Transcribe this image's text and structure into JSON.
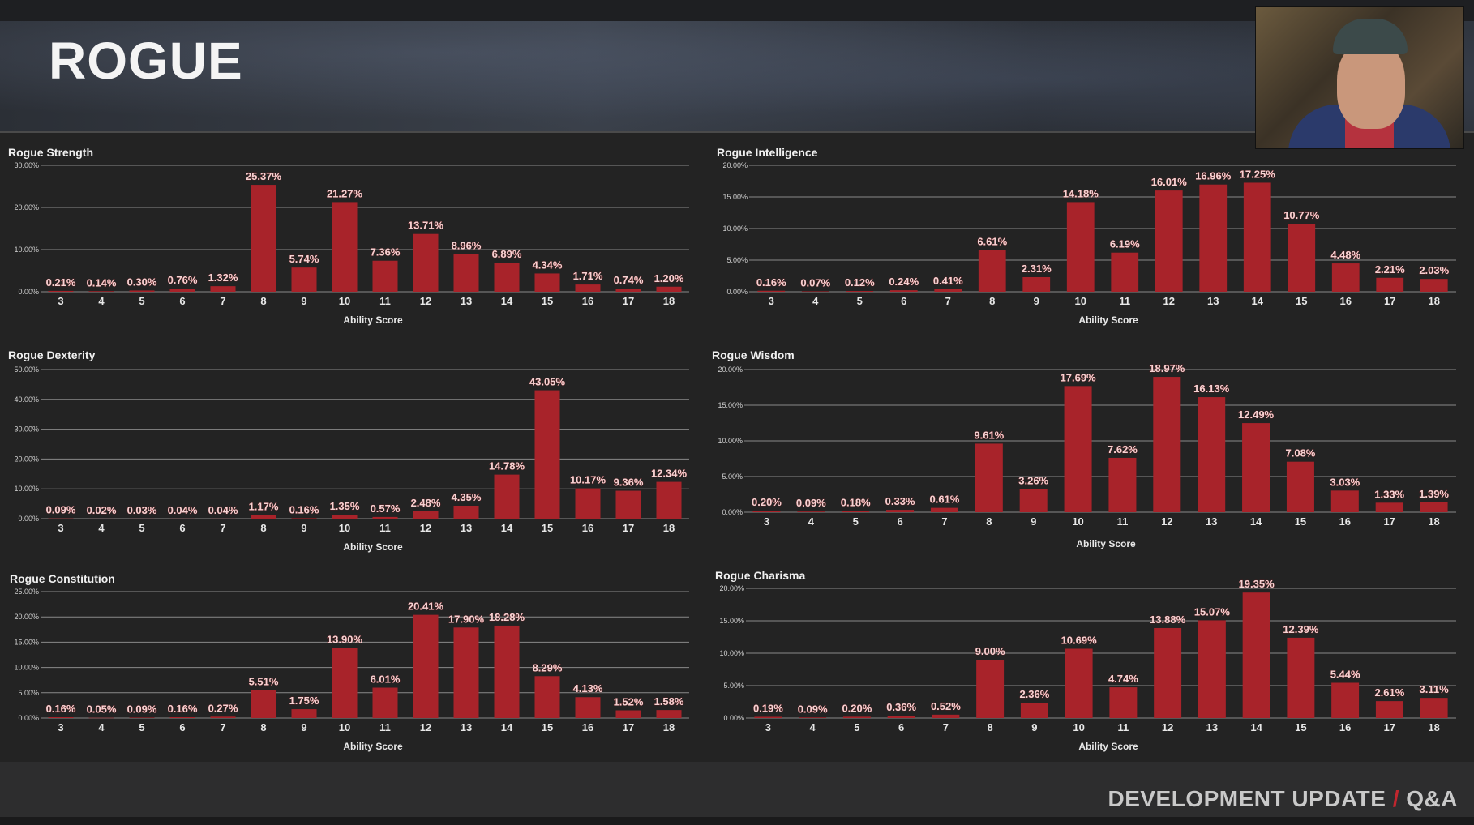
{
  "header": {
    "title": "ROGUE"
  },
  "footer": {
    "left": "DEVELOPMENT UPDATE",
    "separator": "/",
    "right": "Q&A"
  },
  "colors": {
    "bar": "#a8232a",
    "grid": "#8a8a8a",
    "background": "#232323",
    "accent": "#c0262e"
  },
  "chart_data": [
    {
      "type": "bar",
      "title": "Rogue Strength",
      "xlabel": "Ability Score",
      "ylabel": "",
      "categories": [
        "3",
        "4",
        "5",
        "6",
        "7",
        "8",
        "9",
        "10",
        "11",
        "12",
        "13",
        "14",
        "15",
        "16",
        "17",
        "18"
      ],
      "values": [
        0.21,
        0.14,
        0.3,
        0.76,
        1.32,
        25.37,
        5.74,
        21.27,
        7.36,
        13.71,
        8.96,
        6.89,
        4.34,
        1.71,
        0.74,
        1.2
      ],
      "labels": [
        "0.21%",
        "0.14%",
        "0.30%",
        "0.76%",
        "1.32%",
        "25.37%",
        "5.74%",
        "21.27%",
        "7.36%",
        "13.71%",
        "8.96%",
        "6.89%",
        "4.34%",
        "1.71%",
        "0.74%",
        "1.20%"
      ],
      "yticks": [
        "0.00%",
        "10.00%",
        "20.00%",
        "30.00%"
      ],
      "ymax": 30,
      "ystep": 10,
      "grid": true
    },
    {
      "type": "bar",
      "title": "Rogue Intelligence",
      "xlabel": "Ability Score",
      "ylabel": "",
      "categories": [
        "3",
        "4",
        "5",
        "6",
        "7",
        "8",
        "9",
        "10",
        "11",
        "12",
        "13",
        "14",
        "15",
        "16",
        "17",
        "18"
      ],
      "values": [
        0.16,
        0.07,
        0.12,
        0.24,
        0.41,
        6.61,
        2.31,
        14.18,
        6.19,
        16.01,
        16.96,
        17.25,
        10.77,
        4.48,
        2.21,
        2.03
      ],
      "labels": [
        "0.16%",
        "0.07%",
        "0.12%",
        "0.24%",
        "0.41%",
        "6.61%",
        "2.31%",
        "14.18%",
        "6.19%",
        "16.01%",
        "16.96%",
        "17.25%",
        "10.77%",
        "4.48%",
        "2.21%",
        "2.03%"
      ],
      "yticks": [
        "0.00%",
        "5.00%",
        "10.00%",
        "15.00%",
        "20.00%"
      ],
      "ymax": 20,
      "ystep": 5,
      "grid": true
    },
    {
      "type": "bar",
      "title": "Rogue Dexterity",
      "xlabel": "Ability Score",
      "ylabel": "",
      "categories": [
        "3",
        "4",
        "5",
        "6",
        "7",
        "8",
        "9",
        "10",
        "11",
        "12",
        "13",
        "14",
        "15",
        "16",
        "17",
        "18"
      ],
      "values": [
        0.09,
        0.02,
        0.03,
        0.04,
        0.04,
        1.17,
        0.16,
        1.35,
        0.57,
        2.48,
        4.35,
        14.78,
        43.05,
        10.17,
        9.36,
        12.34
      ],
      "labels": [
        "0.09%",
        "0.02%",
        "0.03%",
        "0.04%",
        "0.04%",
        "1.17%",
        "0.16%",
        "1.35%",
        "0.57%",
        "2.48%",
        "4.35%",
        "14.78%",
        "43.05%",
        "10.17%",
        "9.36%",
        "12.34%"
      ],
      "yticks": [
        "0.00%",
        "10.00%",
        "20.00%",
        "30.00%",
        "40.00%",
        "50.00%"
      ],
      "ymax": 50,
      "ystep": 10,
      "grid": true
    },
    {
      "type": "bar",
      "title": "Rogue Wisdom",
      "xlabel": "Ability Score",
      "ylabel": "",
      "categories": [
        "3",
        "4",
        "5",
        "6",
        "7",
        "8",
        "9",
        "10",
        "11",
        "12",
        "13",
        "14",
        "15",
        "16",
        "17",
        "18"
      ],
      "values": [
        0.2,
        0.09,
        0.18,
        0.33,
        0.61,
        9.61,
        3.26,
        17.69,
        7.62,
        18.97,
        16.13,
        12.49,
        7.08,
        3.03,
        1.33,
        1.39
      ],
      "labels": [
        "0.20%",
        "0.09%",
        "0.18%",
        "0.33%",
        "0.61%",
        "9.61%",
        "3.26%",
        "17.69%",
        "7.62%",
        "18.97%",
        "16.13%",
        "12.49%",
        "7.08%",
        "3.03%",
        "1.33%",
        "1.39%"
      ],
      "yticks": [
        "0.00%",
        "5.00%",
        "10.00%",
        "15.00%",
        "20.00%"
      ],
      "ymax": 20,
      "ystep": 5,
      "grid": true
    },
    {
      "type": "bar",
      "title": "Rogue Constitution",
      "xlabel": "Ability Score",
      "ylabel": "",
      "categories": [
        "3",
        "4",
        "5",
        "6",
        "7",
        "8",
        "9",
        "10",
        "11",
        "12",
        "13",
        "14",
        "15",
        "16",
        "17",
        "18"
      ],
      "values": [
        0.16,
        0.05,
        0.09,
        0.16,
        0.27,
        5.51,
        1.75,
        13.9,
        6.01,
        20.41,
        17.9,
        18.28,
        8.29,
        4.13,
        1.52,
        1.58
      ],
      "labels": [
        "0.16%",
        "0.05%",
        "0.09%",
        "0.16%",
        "0.27%",
        "5.51%",
        "1.75%",
        "13.90%",
        "6.01%",
        "20.41%",
        "17.90%",
        "18.28%",
        "8.29%",
        "4.13%",
        "1.52%",
        "1.58%"
      ],
      "yticks": [
        "0.00%",
        "5.00%",
        "10.00%",
        "15.00%",
        "20.00%",
        "25.00%"
      ],
      "ymax": 25,
      "ystep": 5,
      "grid": true
    },
    {
      "type": "bar",
      "title": "Rogue Charisma",
      "xlabel": "Ability Score",
      "ylabel": "",
      "categories": [
        "3",
        "4",
        "5",
        "6",
        "7",
        "8",
        "9",
        "10",
        "11",
        "12",
        "13",
        "14",
        "15",
        "16",
        "17",
        "18"
      ],
      "values": [
        0.19,
        0.09,
        0.2,
        0.36,
        0.52,
        9.0,
        2.36,
        10.69,
        4.74,
        13.88,
        15.07,
        19.35,
        12.39,
        5.44,
        2.61,
        3.11
      ],
      "labels": [
        "0.19%",
        "0.09%",
        "0.20%",
        "0.36%",
        "0.52%",
        "9.00%",
        "2.36%",
        "10.69%",
        "4.74%",
        "13.88%",
        "15.07%",
        "19.35%",
        "12.39%",
        "5.44%",
        "2.61%",
        "3.11%"
      ],
      "yticks": [
        "0.00%",
        "5.00%",
        "10.00%",
        "15.00%",
        "20.00%"
      ],
      "ymax": 20,
      "ystep": 5,
      "grid": true
    }
  ]
}
